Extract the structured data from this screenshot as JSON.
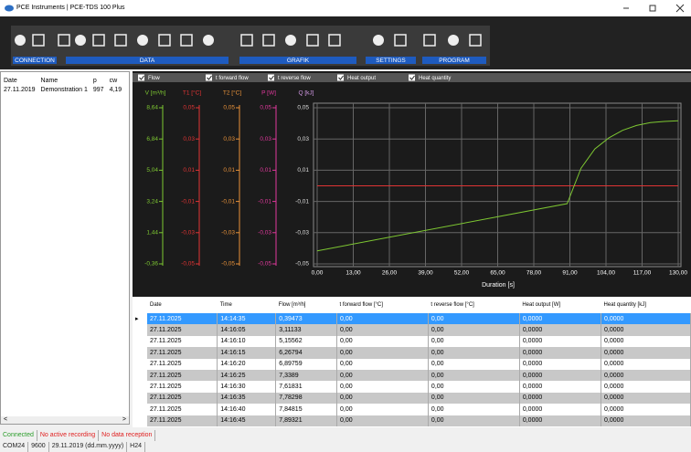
{
  "window": {
    "title": "PCE Instruments | PCE-TDS 100 Plus"
  },
  "toolbar": {
    "groups": [
      "CONNECTION",
      "DATA",
      "GRAFIK",
      "SETTINGS",
      "PROGRAM"
    ]
  },
  "file_list": {
    "columns": [
      "Date",
      "Name",
      "p",
      "cw"
    ],
    "rows": [
      [
        "27.11.2019",
        "Demonstration 1",
        "997",
        "4,19"
      ]
    ]
  },
  "chart": {
    "checkboxes": [
      "Flow",
      "t forward flow",
      "t reverse flow",
      "Heat output",
      "Heat quantity"
    ],
    "axes": [
      {
        "label": "V [m³/h]",
        "color": "#7ec832",
        "ticks": [
          "8,64",
          "6,84",
          "5,04",
          "3,24",
          "1,44",
          "-0,36"
        ]
      },
      {
        "label": "T1 [°C]",
        "color": "#e03434",
        "ticks": [
          "0,05",
          "0,03",
          "0,01",
          "-0,01",
          "-0,03",
          "-0,05"
        ]
      },
      {
        "label": "T2 [°C]",
        "color": "#e8923a",
        "ticks": [
          "0,05",
          "0,03",
          "0,01",
          "-0,01",
          "-0,03",
          "-0,05"
        ]
      },
      {
        "label": "P [W]",
        "color": "#e0389c",
        "ticks": [
          "0,05",
          "0,03",
          "0,01",
          "-0,01",
          "-0,03",
          "-0,05"
        ]
      },
      {
        "label": "Q [kJ]",
        "color": "#d59be8",
        "ticks": [
          "0,05",
          "0,03",
          "0,01",
          "-0,01",
          "-0,03",
          "-0,05"
        ]
      }
    ],
    "x_ticks": [
      "0,00",
      "13,00",
      "26,00",
      "39,00",
      "52,00",
      "65,00",
      "78,00",
      "91,00",
      "104,00",
      "117,00",
      "130,00"
    ],
    "x_label": "Duration [s]"
  },
  "table": {
    "columns": [
      "Date",
      "Time",
      "Flow [m³/h]",
      "t forward flow [°C]",
      "t reverse flow [°C]",
      "Heat output [W]",
      "Heat quantity [kJ]"
    ],
    "rows": [
      [
        "27.11.2025",
        "14:14:35",
        "0,39473",
        "0,00",
        "0,00",
        "0,0000",
        "0,0000"
      ],
      [
        "27.11.2025",
        "14:16:05",
        "3,11133",
        "0,00",
        "0,00",
        "0,0000",
        "0,0000"
      ],
      [
        "27.11.2025",
        "14:16:10",
        "5,15562",
        "0,00",
        "0,00",
        "0,0000",
        "0,0000"
      ],
      [
        "27.11.2025",
        "14:16:15",
        "6,26794",
        "0,00",
        "0,00",
        "0,0000",
        "0,0000"
      ],
      [
        "27.11.2025",
        "14:16:20",
        "6,89759",
        "0,00",
        "0,00",
        "0,0000",
        "0,0000"
      ],
      [
        "27.11.2025",
        "14:16:25",
        "7,3389",
        "0,00",
        "0,00",
        "0,0000",
        "0,0000"
      ],
      [
        "27.11.2025",
        "14:16:30",
        "7,61831",
        "0,00",
        "0,00",
        "0,0000",
        "0,0000"
      ],
      [
        "27.11.2025",
        "14:16:35",
        "7,78298",
        "0,00",
        "0,00",
        "0,0000",
        "0,0000"
      ],
      [
        "27.11.2025",
        "14:16:40",
        "7,84815",
        "0,00",
        "0,00",
        "0,0000",
        "0,0000"
      ],
      [
        "27.11.2025",
        "14:16:45",
        "7,89321",
        "0,00",
        "0,00",
        "0,0000",
        "0,0000"
      ]
    ]
  },
  "status": {
    "items": [
      "Connected",
      "No active recording",
      "No data reception"
    ]
  },
  "footer": {
    "items": [
      "COM24",
      "9600",
      "29.11.2019 (dd.mm.yyyy)",
      "H24"
    ]
  }
}
